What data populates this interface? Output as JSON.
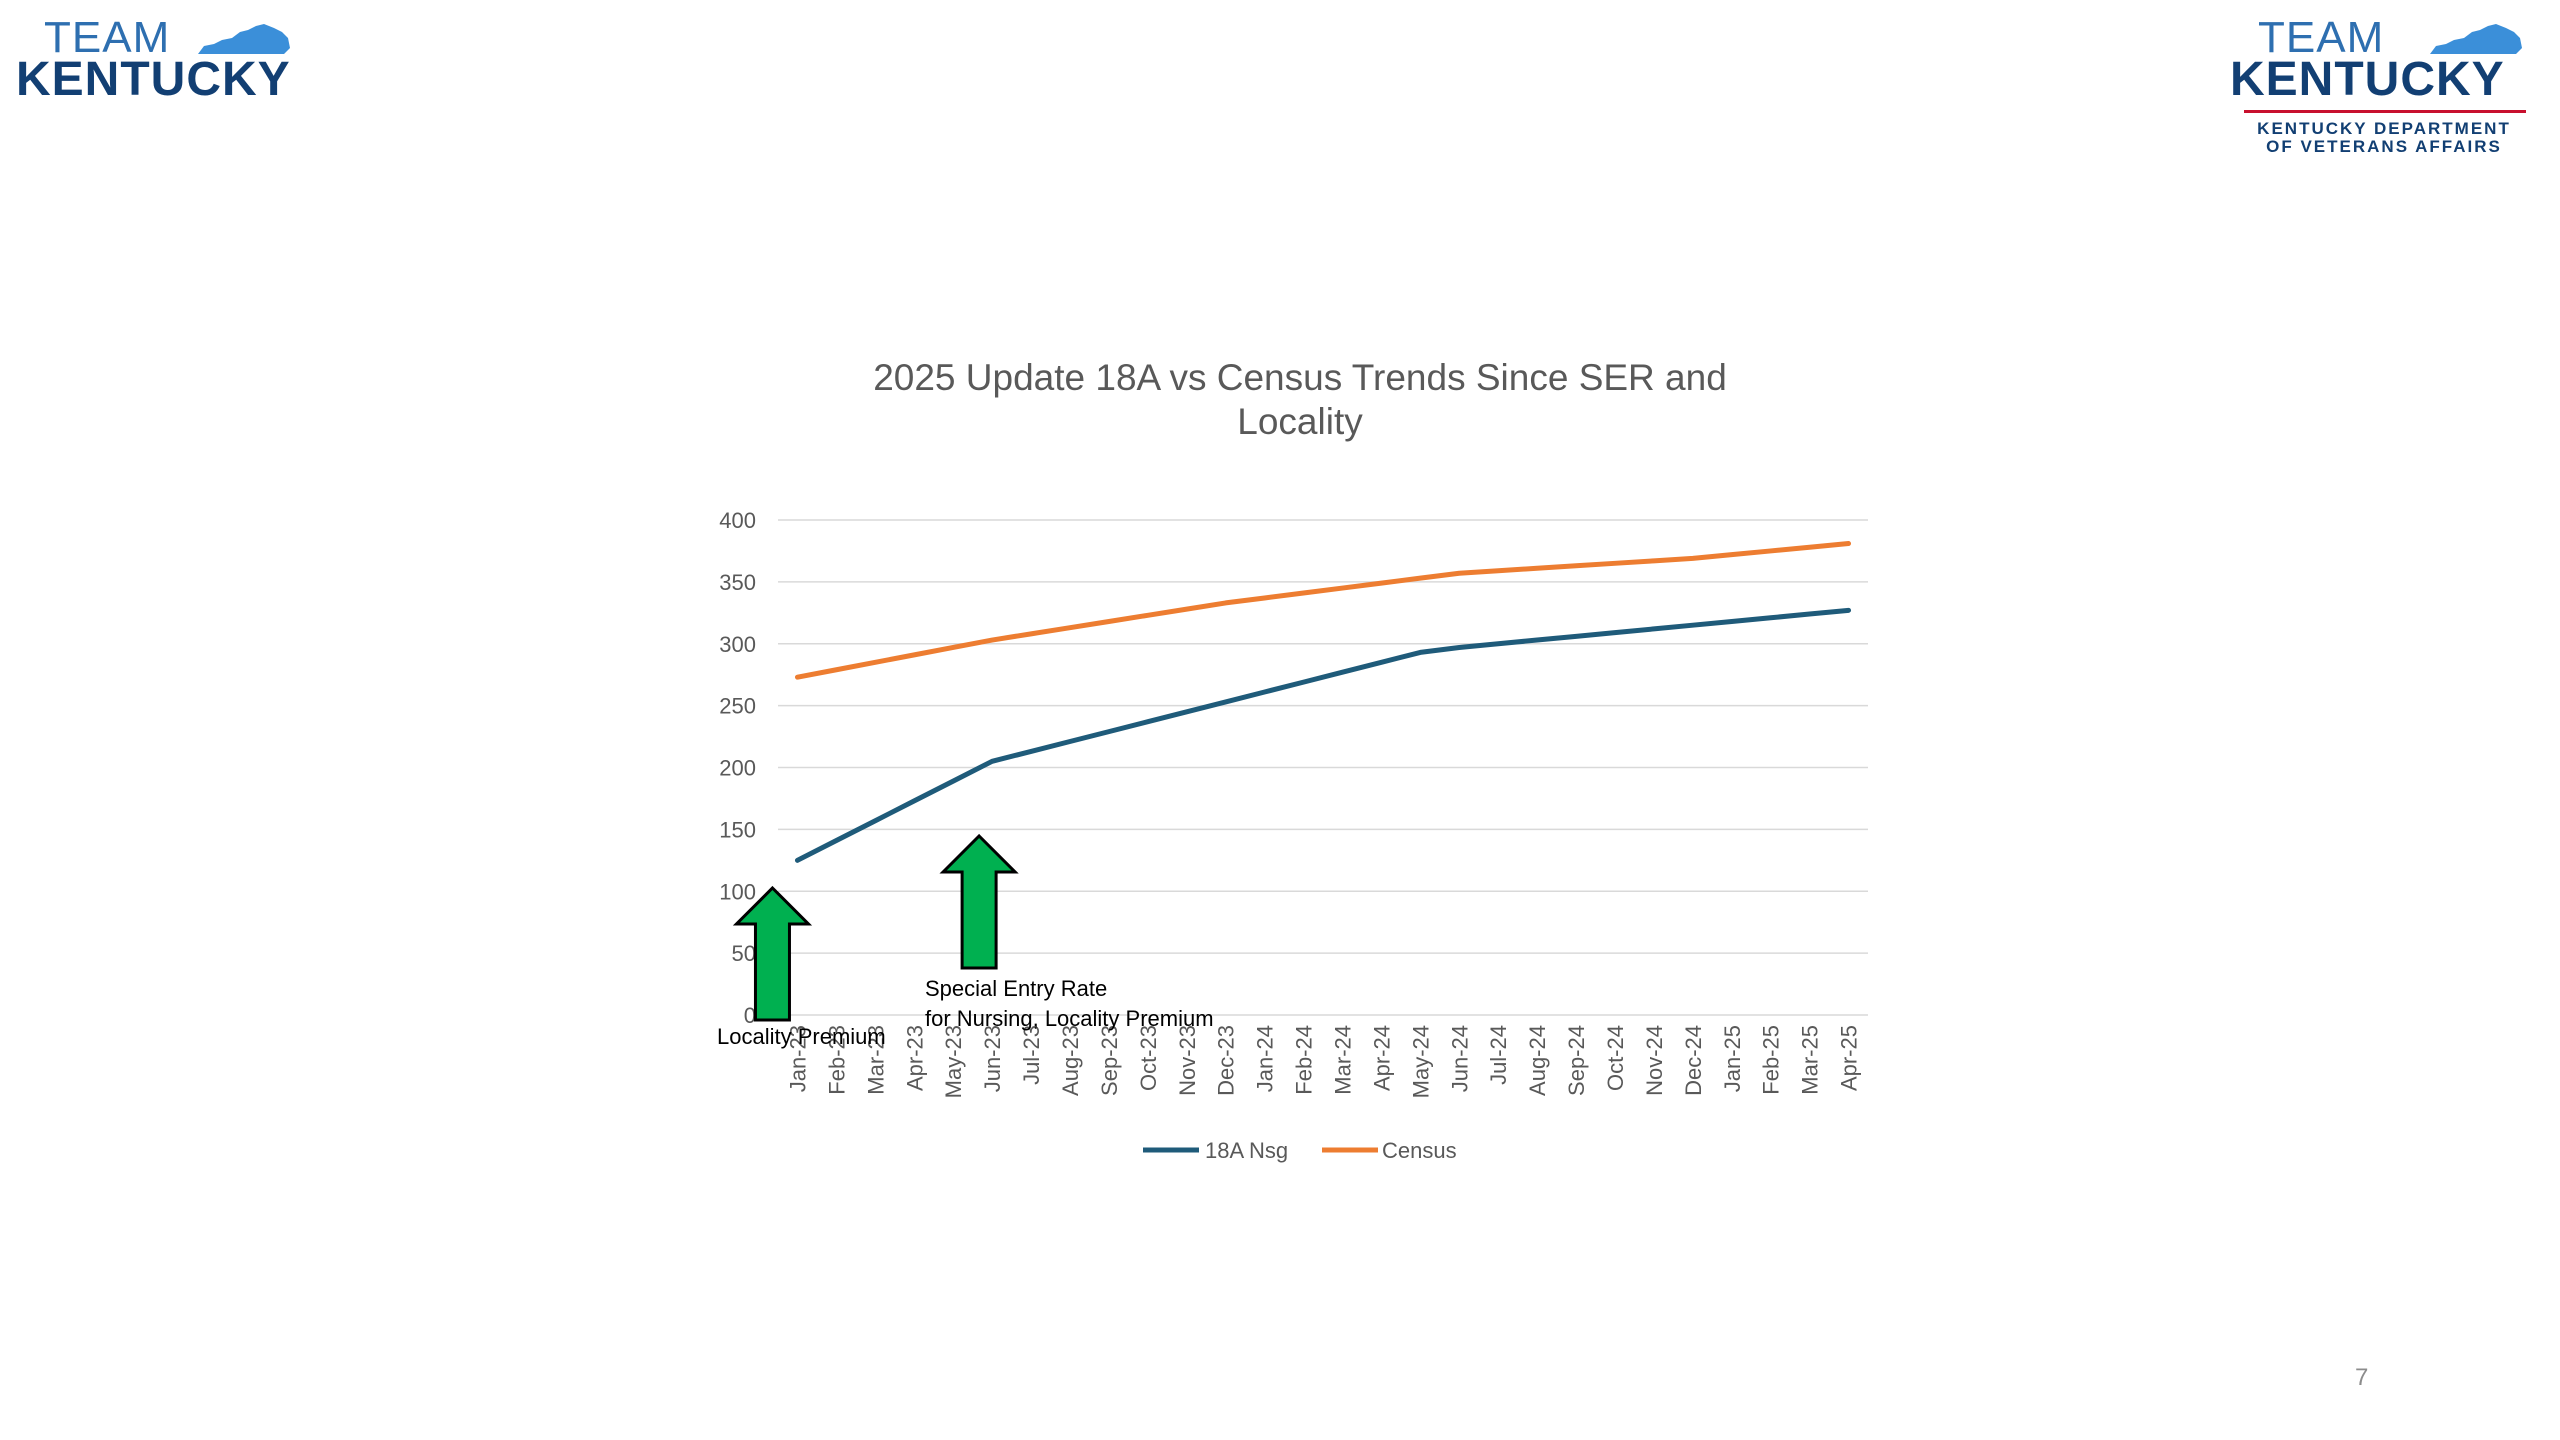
{
  "logo_left": {
    "line1": "TEAM",
    "line2": "KENTUCKY"
  },
  "logo_right": {
    "line1": "TEAM",
    "line2": "KENTUCKY",
    "dept_line1": "KENTUCKY DEPARTMENT",
    "dept_line2": "OF VETERANS AFFAIRS"
  },
  "colors": {
    "series_18a": "#1f5b7a",
    "series_census": "#ed7d31",
    "arrow_fill": "#00b050",
    "grid": "#d9d9d9",
    "axis_text": "#595959"
  },
  "page_number": "7",
  "chart_data": {
    "type": "line",
    "title": "2025 Update 18A vs Census Trends Since SER and Locality",
    "title_lines": [
      "2025 Update 18A vs Census Trends Since SER and",
      "Locality"
    ],
    "categories": [
      "Jan-23",
      "Feb-23",
      "Mar-23",
      "Apr-23",
      "May-23",
      "Jun-23",
      "Jul-23",
      "Aug-23",
      "Sep-23",
      "Oct-23",
      "Nov-23",
      "Dec-23",
      "Jan-24",
      "Feb-24",
      "Mar-24",
      "Apr-24",
      "May-24",
      "Jun-24",
      "Jul-24",
      "Aug-24",
      "Sep-24",
      "Oct-24",
      "Nov-24",
      "Dec-24",
      "Jan-25",
      "Feb-25",
      "Mar-25",
      "Apr-25"
    ],
    "category_labels": [
      "Jan-23",
      "Feb-23",
      "Mar-23",
      "Apr-23",
      "May-23",
      "Jun-23",
      "Jul-23",
      "Aug-23",
      "Sep-23",
      "Oct-23",
      "Nov-23",
      "Dec-23",
      "Jan-24",
      "Feb-24",
      "Mar-24",
      "Apr-24",
      "May-24",
      "Jun-24",
      "Jul-24",
      "Aug-24",
      "Sep-24",
      "Oct-24",
      "Nov-24",
      "Dec-24",
      "Jan-25",
      "Feb-25",
      "Mar-25",
      "Apr-25"
    ],
    "series": [
      {
        "name": "18A Nsg",
        "color": "#1f5b7a",
        "values": [
          125,
          141,
          157,
          173,
          189,
          205,
          213,
          221,
          229,
          237,
          245,
          253,
          261,
          269,
          277,
          285,
          293,
          297,
          300,
          303,
          306,
          309,
          312,
          315,
          318,
          321,
          324,
          327
        ]
      },
      {
        "name": "Census",
        "color": "#ed7d31",
        "values": [
          273,
          279,
          285,
          291,
          297,
          303,
          308,
          313,
          318,
          323,
          328,
          333,
          337,
          341,
          345,
          349,
          353,
          357,
          359,
          361,
          363,
          365,
          367,
          369,
          372,
          375,
          378,
          381
        ]
      }
    ],
    "ylim": [
      0,
      400
    ],
    "yticks": [
      0,
      50,
      100,
      150,
      200,
      250,
      300,
      350,
      400
    ],
    "grid": true,
    "legend_position": "bottom",
    "annotations": [
      {
        "category": "Jan-23",
        "lines": [
          "Locality Premium"
        ]
      },
      {
        "category": "Jun-23",
        "lines": [
          "Special Entry Rate",
          "for Nursing, Locality Premium"
        ]
      }
    ]
  }
}
